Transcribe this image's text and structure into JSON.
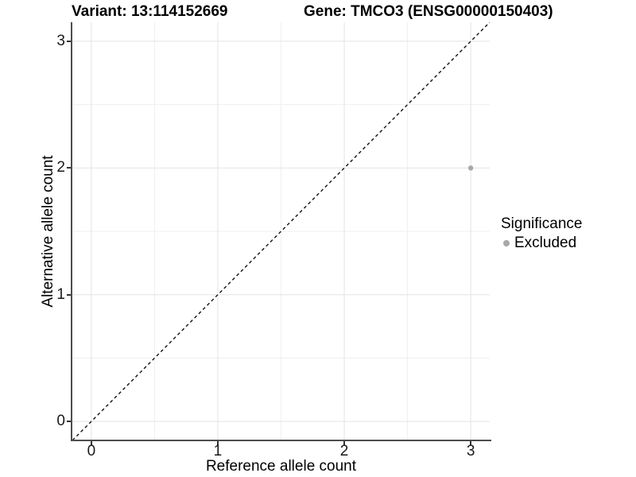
{
  "chart_data": {
    "type": "scatter",
    "title_variant": "Variant: 13:114152669",
    "title_gene": "Gene: TMCO3 (ENSG00000150403)",
    "xlabel": "Reference allele count",
    "ylabel": "Alternative allele count",
    "xlim": [
      -0.15,
      3.15
    ],
    "ylim": [
      -0.15,
      3.15
    ],
    "x_ticks": [
      0,
      1,
      2,
      3
    ],
    "y_ticks": [
      0,
      1,
      2,
      3
    ],
    "grid_minor": [
      0.5,
      1.5,
      2.5
    ],
    "grid": true,
    "legend": {
      "title": "Significance",
      "position": "right",
      "items": [
        {
          "label": "Excluded",
          "color": "#a8a8a8"
        }
      ]
    },
    "series": [
      {
        "name": "Excluded",
        "color": "#a8a8a8",
        "points": [
          {
            "x": 3,
            "y": 2
          }
        ]
      }
    ],
    "reference_line": {
      "slope": 1,
      "intercept": 0,
      "linetype": "dashed",
      "color": "#111111"
    }
  },
  "style": {
    "grid_major_color": "#e3e3e3",
    "grid_minor_color": "#efefef",
    "axis_line_color": "#4d4d4d",
    "tick_color": "#333333"
  }
}
